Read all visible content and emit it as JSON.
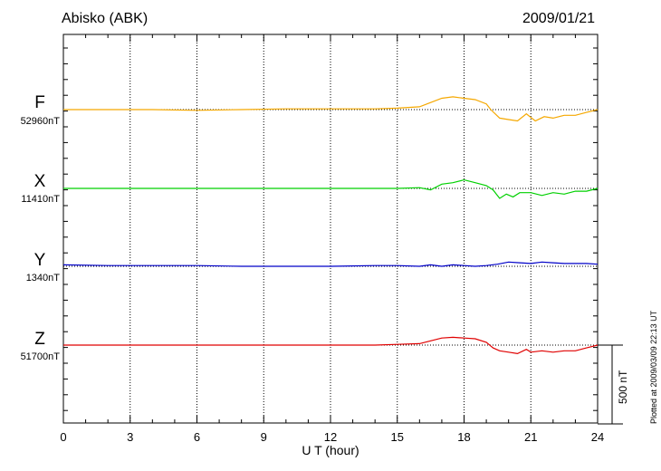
{
  "header": {
    "station": "Abisko (ABK)",
    "date": "2009/01/21"
  },
  "footer_note": "Plotted at 2009/03/09 22:13 UT",
  "scale_label": "500 nT",
  "chart_data": {
    "type": "line",
    "xlabel": "U T (hour)",
    "xlim": [
      0,
      24
    ],
    "xticks": [
      "0",
      "3",
      "6",
      "9",
      "12",
      "15",
      "18",
      "21",
      "24"
    ],
    "grid": "vertical dotted at 3-hour intervals",
    "scale_bar_nT": 500,
    "series": [
      {
        "name": "F",
        "baseline": "52960nT",
        "color": "#f5a800",
        "x": [
          0,
          2,
          4,
          6,
          8,
          10,
          12,
          14,
          15,
          16,
          16.5,
          17,
          17.5,
          18,
          18.5,
          19,
          19.2,
          19.6,
          20,
          20.4,
          20.8,
          21.2,
          21.6,
          22,
          22.5,
          23,
          23.5,
          24
        ],
        "y": [
          0,
          0,
          0,
          -5,
          0,
          5,
          5,
          5,
          10,
          20,
          50,
          80,
          90,
          80,
          70,
          40,
          0,
          -60,
          -70,
          -80,
          -30,
          -80,
          -50,
          -60,
          -40,
          -40,
          -20,
          0
        ]
      },
      {
        "name": "X",
        "baseline": "11410nT",
        "color": "#00d000",
        "x": [
          0,
          2,
          4,
          6,
          8,
          10,
          12,
          14,
          15,
          16,
          16.5,
          17,
          17.5,
          18,
          18.5,
          19,
          19.3,
          19.6,
          19.9,
          20.2,
          20.5,
          21,
          21.5,
          22,
          22.5,
          23,
          23.5,
          24
        ],
        "y": [
          0,
          0,
          0,
          0,
          0,
          0,
          0,
          0,
          0,
          5,
          -10,
          30,
          40,
          60,
          40,
          20,
          -10,
          -70,
          -40,
          -60,
          -30,
          -30,
          -50,
          -30,
          -40,
          -20,
          -20,
          0
        ]
      },
      {
        "name": "Y",
        "baseline": "1340nT",
        "color": "#0000c8",
        "x": [
          0,
          2,
          4,
          6,
          8,
          10,
          12,
          14,
          15,
          16,
          16.5,
          17,
          17.5,
          18,
          18.5,
          19,
          19.5,
          20,
          20.5,
          21,
          21.5,
          22,
          22.5,
          23,
          23.5,
          24
        ],
        "y": [
          10,
          5,
          5,
          5,
          0,
          0,
          0,
          5,
          5,
          0,
          10,
          0,
          10,
          5,
          0,
          5,
          15,
          30,
          25,
          20,
          30,
          25,
          20,
          20,
          20,
          15
        ]
      },
      {
        "name": "Z",
        "baseline": "51700nT",
        "color": "#e00000",
        "x": [
          0,
          2,
          4,
          6,
          8,
          10,
          12,
          14,
          15,
          16,
          16.5,
          17,
          17.5,
          18,
          18.5,
          19,
          19.3,
          19.6,
          20,
          20.4,
          20.8,
          21,
          21.5,
          22,
          22.5,
          23,
          23.5,
          24
        ],
        "y": [
          0,
          0,
          0,
          0,
          0,
          0,
          0,
          0,
          5,
          10,
          30,
          50,
          55,
          50,
          45,
          20,
          -20,
          -40,
          -50,
          -60,
          -30,
          -50,
          -40,
          -50,
          -40,
          -40,
          -20,
          0
        ]
      }
    ]
  }
}
